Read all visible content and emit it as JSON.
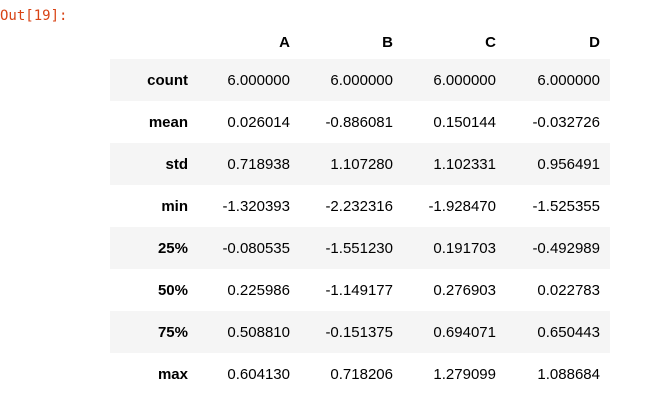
{
  "prompt": "Out[19]:",
  "table": {
    "columns": [
      "",
      "A",
      "B",
      "C",
      "D"
    ],
    "rows": [
      [
        "count",
        "6.000000",
        "6.000000",
        "6.000000",
        "6.000000"
      ],
      [
        "mean",
        "0.026014",
        "-0.886081",
        "0.150144",
        "-0.032726"
      ],
      [
        "std",
        "0.718938",
        "1.107280",
        "1.102331",
        "0.956491"
      ],
      [
        "min",
        "-1.320393",
        "-2.232316",
        "-1.928470",
        "-1.525355"
      ],
      [
        "25%",
        "-0.080535",
        "-1.551230",
        "0.191703",
        "-0.492989"
      ],
      [
        "50%",
        "0.225986",
        "-1.149177",
        "0.276903",
        "0.022783"
      ],
      [
        "75%",
        "0.508810",
        "-0.151375",
        "0.694071",
        "0.650443"
      ],
      [
        "max",
        "0.604130",
        "0.718206",
        "1.279099",
        "1.088684"
      ]
    ]
  }
}
